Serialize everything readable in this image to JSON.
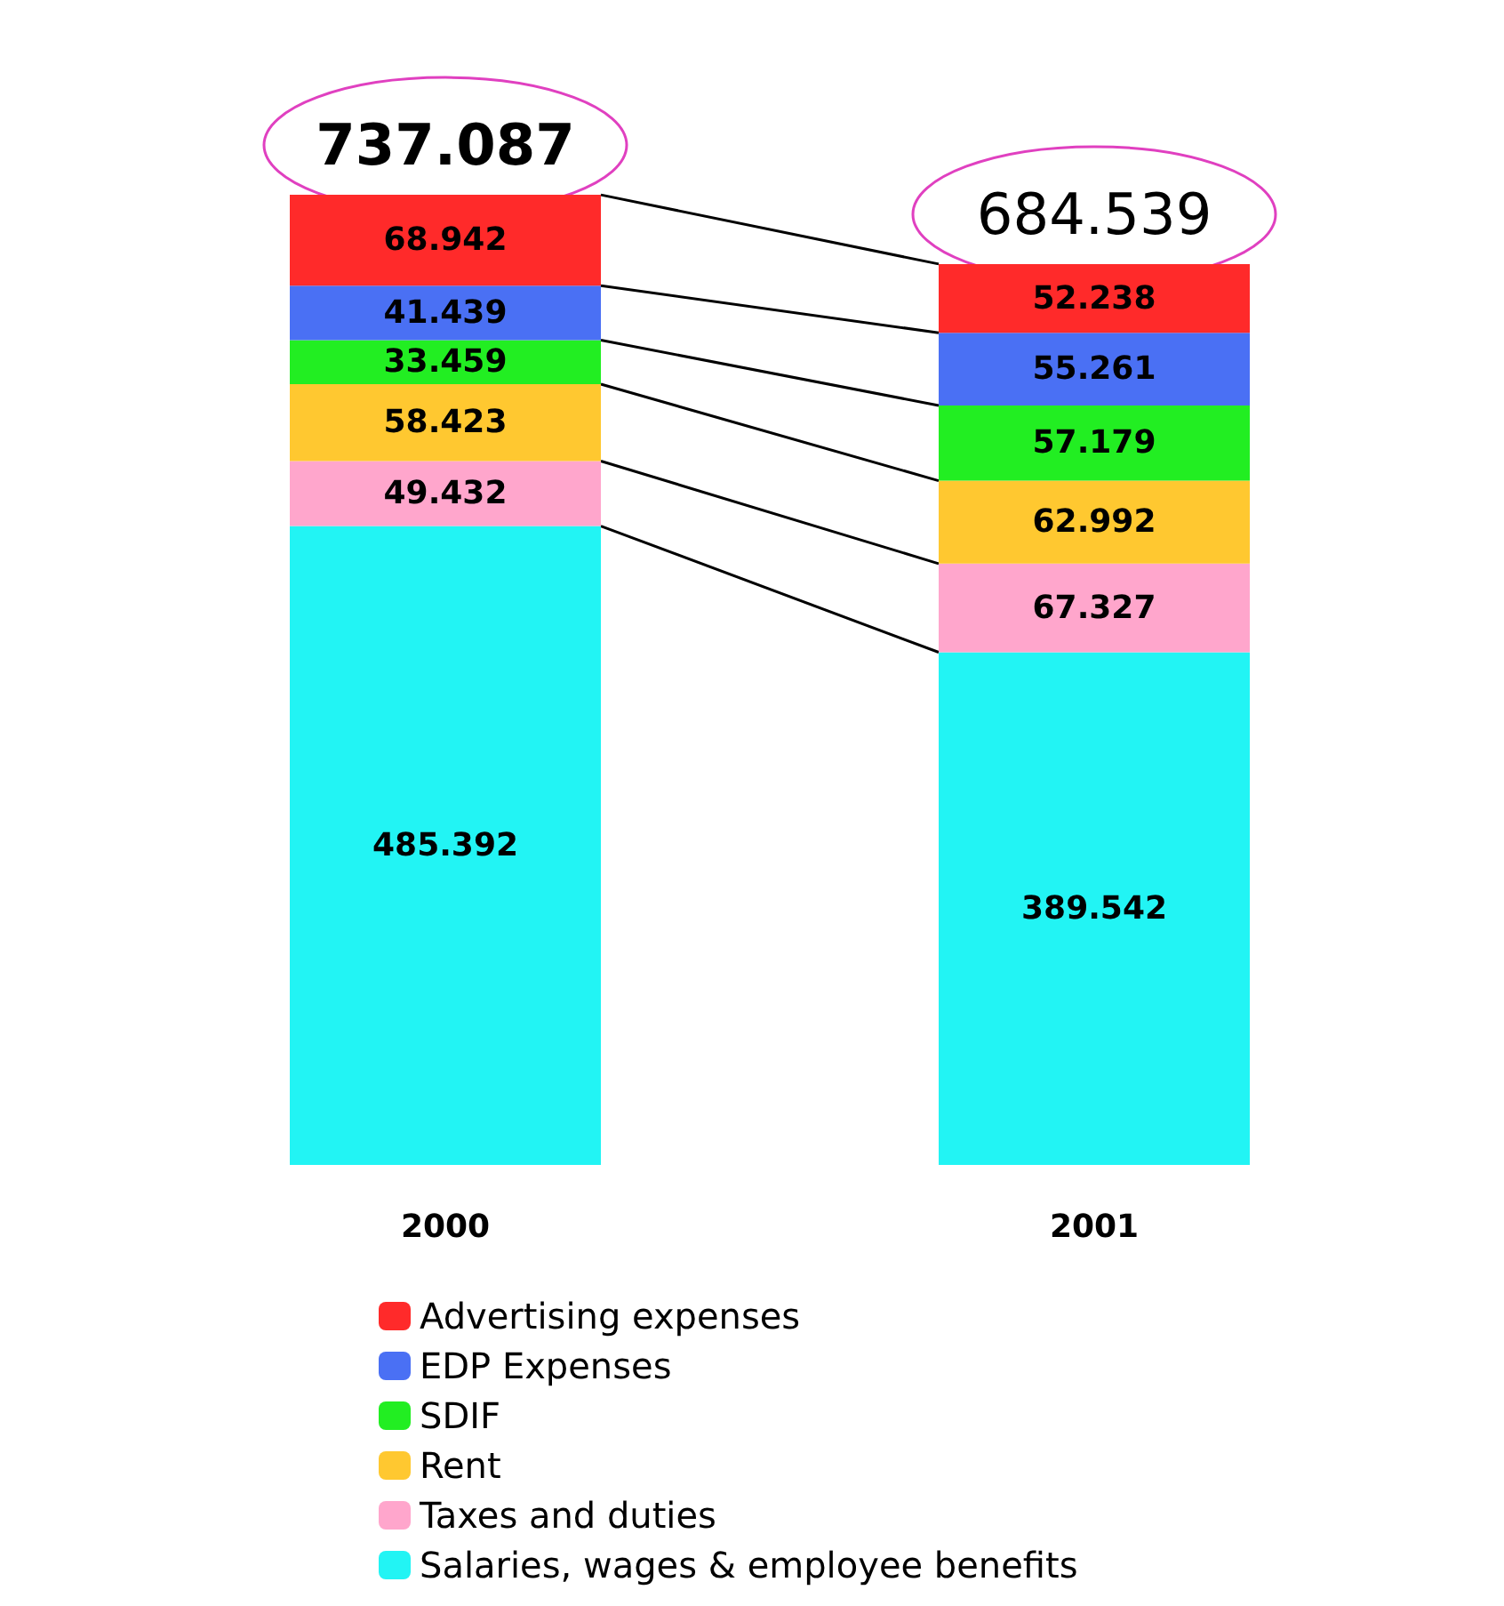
{
  "chart_data": {
    "type": "bar",
    "stacked": true,
    "categories": [
      "2000",
      "2001"
    ],
    "series": [
      {
        "name": "Salaries, wages & employee benefits",
        "color": "#22f4f4",
        "values": [
          485.392,
          389.542
        ]
      },
      {
        "name": "Taxes and duties",
        "color": "#ffa6cc",
        "values": [
          49.432,
          67.327
        ]
      },
      {
        "name": "Rent",
        "color": "#ffc830",
        "values": [
          58.423,
          62.992
        ]
      },
      {
        "name": "SDIF",
        "color": "#22ee22",
        "values": [
          33.459,
          57.179
        ]
      },
      {
        "name": "EDP Expenses",
        "color": "#4a70f4",
        "values": [
          41.439,
          55.261
        ]
      },
      {
        "name": "Advertising expenses",
        "color": "#ff2a2a",
        "values": [
          68.942,
          52.238
        ]
      }
    ],
    "totals": [
      "737.087",
      "684.539"
    ],
    "data_labels": true,
    "legend": "bottom",
    "tick_labels": "x"
  }
}
